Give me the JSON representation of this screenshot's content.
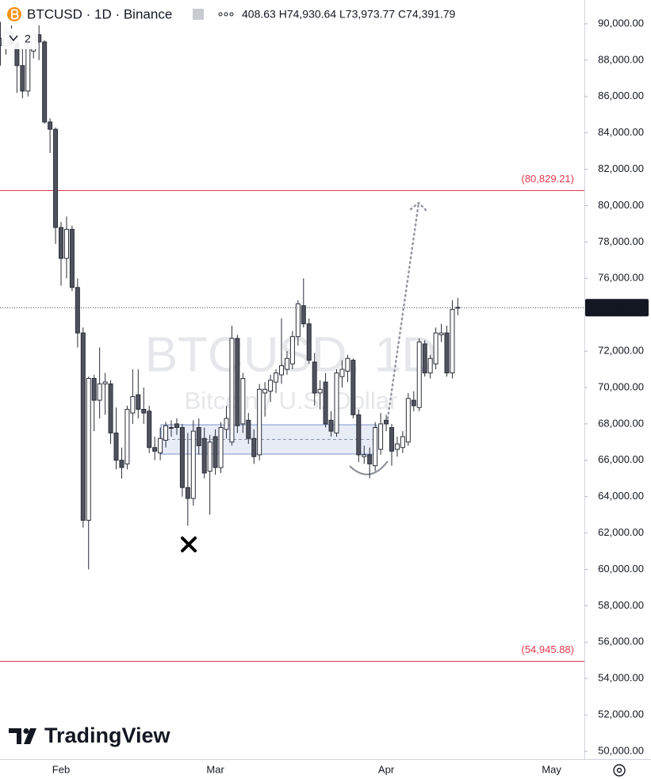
{
  "chart_data": {
    "type": "candlestick",
    "header": {
      "title": "BTCUSD · 1D · Binance",
      "indicators": "2",
      "ohlc": "408.63 H74,930.64 L73,973.77 C74,391.79"
    },
    "watermark": {
      "title": "BTCUSD, 1D",
      "subtitle": "Bitcoin / U.S. Dollar"
    },
    "logo": "TradingView",
    "categories": [
      null,
      null,
      null,
      null,
      null,
      null,
      null,
      null,
      null,
      null,
      null,
      "Feb",
      null,
      null,
      null,
      null,
      null,
      null,
      null,
      null,
      null,
      null,
      null,
      null,
      null,
      null,
      null,
      null,
      null,
      null,
      null,
      null,
      null,
      null,
      null,
      null,
      null,
      null,
      null,
      "Mar",
      null,
      null,
      null,
      null,
      null,
      null,
      null,
      null,
      null,
      null,
      null,
      null,
      null,
      null,
      null,
      null,
      null,
      null,
      null,
      null,
      null,
      null,
      null,
      null,
      null,
      null,
      null,
      null,
      null,
      null,
      "Apr",
      null,
      null,
      null,
      null,
      null,
      null,
      null,
      null,
      null,
      null,
      null,
      null,
      null,
      null,
      null,
      null,
      null,
      null,
      null,
      null,
      null,
      null,
      null,
      null,
      null,
      null,
      null,
      null,
      null,
      "May"
    ],
    "open": [
      89200,
      88800,
      89500,
      88900,
      87700,
      86300,
      88500,
      89400,
      89000,
      84600,
      84200,
      78800,
      77100,
      78700,
      75500,
      73000,
      62700,
      70500,
      69300,
      70200,
      70200,
      67500,
      66000,
      65800,
      68600,
      69600,
      68800,
      68700,
      66700,
      66400,
      67100,
      67800,
      68000,
      67800,
      64500,
      63900,
      67800,
      67200,
      65400,
      67300,
      65600,
      67700,
      67000,
      72700,
      68000,
      68200,
      67200,
      66300,
      69700,
      69800,
      70300,
      70700,
      71000,
      71300,
      72800,
      74500,
      73500,
      71400,
      69700,
      70300,
      68200,
      67500,
      70600,
      70900,
      71500,
      68500,
      66200,
      66300,
      65700,
      66600,
      68200,
      67800,
      66600,
      66700,
      67000,
      69300,
      68900,
      72400,
      70800,
      71300,
      72900,
      73000,
      70800,
      74408.63,
      null,
      null,
      null,
      null,
      null,
      null,
      null,
      null,
      null,
      null,
      null,
      null,
      null,
      null,
      null,
      null,
      null
    ],
    "high": [
      90100,
      89700,
      90200,
      89300,
      88600,
      89000,
      89700,
      90000,
      89100,
      84800,
      84300,
      79100,
      79400,
      78900,
      76000,
      73300,
      70600,
      70700,
      72200,
      70800,
      70400,
      68900,
      66700,
      69000,
      71000,
      71000,
      70000,
      69000,
      67300,
      67800,
      68100,
      68200,
      68300,
      68000,
      67500,
      68200,
      68300,
      67800,
      67400,
      67700,
      68100,
      69000,
      73400,
      72900,
      70800,
      68600,
      67700,
      70200,
      70300,
      70700,
      71000,
      73800,
      72000,
      73100,
      74800,
      76000,
      73800,
      71900,
      70400,
      70800,
      68700,
      71000,
      71500,
      71800,
      71600,
      68800,
      66800,
      66700,
      68100,
      68600,
      68500,
      68000,
      67300,
      67600,
      69700,
      69800,
      72700,
      72600,
      71800,
      73300,
      73500,
      73400,
      74800,
      74930.64,
      null,
      null,
      null,
      null,
      null,
      null,
      null,
      null,
      null,
      null,
      null,
      null,
      null,
      null,
      null,
      null,
      null
    ],
    "low": [
      87700,
      88300,
      88700,
      86200,
      85900,
      86000,
      88100,
      88000,
      84500,
      82900,
      77900,
      75600,
      76000,
      75300,
      72200,
      62300,
      60000,
      67600,
      68300,
      68500,
      66900,
      65500,
      65000,
      65500,
      68000,
      68300,
      68000,
      66400,
      66000,
      66000,
      66700,
      67300,
      67400,
      64000,
      62400,
      63500,
      66300,
      65000,
      63000,
      65200,
      65300,
      67200,
      66800,
      67500,
      67500,
      66900,
      65800,
      66000,
      68400,
      69200,
      69700,
      70200,
      70700,
      71000,
      72300,
      73300,
      71300,
      69000,
      68800,
      67800,
      67300,
      67300,
      70000,
      70300,
      68300,
      65900,
      65800,
      65000,
      65400,
      66300,
      67600,
      65700,
      66200,
      66400,
      66800,
      68700,
      68700,
      70600,
      70500,
      71000,
      72500,
      70600,
      70500,
      73973.77,
      null,
      null,
      null,
      null,
      null,
      null,
      null,
      null,
      null,
      null,
      null,
      null,
      null,
      null,
      null,
      null,
      null
    ],
    "close": [
      88800,
      89500,
      88900,
      87700,
      86300,
      88700,
      89400,
      89000,
      84600,
      84200,
      78800,
      77100,
      78700,
      75500,
      73000,
      62700,
      70500,
      69300,
      70200,
      70300,
      67500,
      66000,
      65600,
      68800,
      69500,
      68800,
      68600,
      66700,
      66500,
      67200,
      67900,
      67800,
      67800,
      64500,
      63900,
      67600,
      66800,
      65300,
      67000,
      65600,
      67800,
      68300,
      72700,
      67900,
      70500,
      67200,
      66200,
      69900,
      69900,
      70400,
      70800,
      71200,
      71600,
      72800,
      74600,
      73500,
      71500,
      69700,
      69900,
      68000,
      67600,
      70800,
      71000,
      71600,
      68500,
      66300,
      66300,
      65800,
      67800,
      68000,
      68000,
      66500,
      66900,
      67300,
      69400,
      69000,
      72500,
      70800,
      71600,
      73000,
      73000,
      70800,
      74300,
      74391.79,
      null,
      null,
      null,
      null,
      null,
      null,
      null,
      null,
      null,
      null,
      null,
      null,
      null,
      null,
      null,
      null,
      null
    ],
    "up_color": "#ffffff",
    "down_color": "#50535e",
    "outline_color": "#2a2e39",
    "ylim": [
      49564,
      91307
    ],
    "yticks": [
      {
        "value": 50000,
        "label": "50,000.00"
      },
      {
        "value": 52000,
        "label": "52,000.00"
      },
      {
        "value": 54000,
        "label": "54,000.00"
      },
      {
        "value": 56000,
        "label": "56,000.00"
      },
      {
        "value": 58000,
        "label": "58,000.00"
      },
      {
        "value": 60000,
        "label": "60,000.00"
      },
      {
        "value": 62000,
        "label": "62,000.00"
      },
      {
        "value": 64000,
        "label": "64,000.00"
      },
      {
        "value": 66000,
        "label": "66,000.00"
      },
      {
        "value": 68000,
        "label": "68,000.00"
      },
      {
        "value": 70000,
        "label": "70,000.00"
      },
      {
        "value": 72000,
        "label": "72,000.00"
      },
      {
        "value": 76000,
        "label": "76,000.00"
      },
      {
        "value": 78000,
        "label": "78,000.00"
      },
      {
        "value": 80000,
        "label": "80,000.00"
      },
      {
        "value": 82000,
        "label": "82,000.00"
      },
      {
        "value": 84000,
        "label": "84,000.00"
      },
      {
        "value": 86000,
        "label": "86,000.00"
      },
      {
        "value": 88000,
        "label": "88,000.00"
      },
      {
        "value": 90000,
        "label": "90,000.00"
      }
    ],
    "last_price": {
      "value": 74391.79,
      "label": "74,391.79"
    },
    "levels": [
      {
        "value": 80829.21,
        "label": "(80,829.21)",
        "color": "#e2394d"
      },
      {
        "value": 54945.88,
        "label": "(54,945.88)",
        "color": "#e2394d"
      }
    ]
  }
}
